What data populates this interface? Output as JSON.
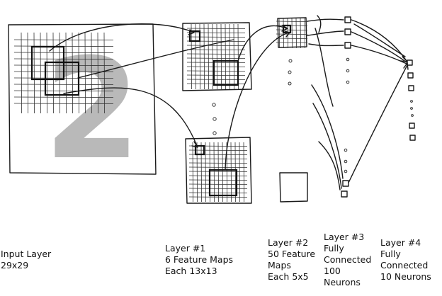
{
  "digit": "2",
  "layers": [
    {
      "id": "input",
      "lines": [
        "Input Layer",
        "29x29"
      ]
    },
    {
      "id": "layer1",
      "lines": [
        "Layer #1",
        "6 Feature Maps",
        "Each 13x13"
      ]
    },
    {
      "id": "layer2",
      "lines": [
        "Layer #2",
        "50 Feature",
        "Maps",
        "Each 5x5"
      ]
    },
    {
      "id": "layer3",
      "lines": [
        "Layer #3",
        "Fully",
        "Connected",
        "100",
        "Neurons"
      ]
    },
    {
      "id": "layer4",
      "lines": [
        "Layer #4",
        "Fully",
        "Connected",
        "10 Neurons"
      ]
    }
  ]
}
